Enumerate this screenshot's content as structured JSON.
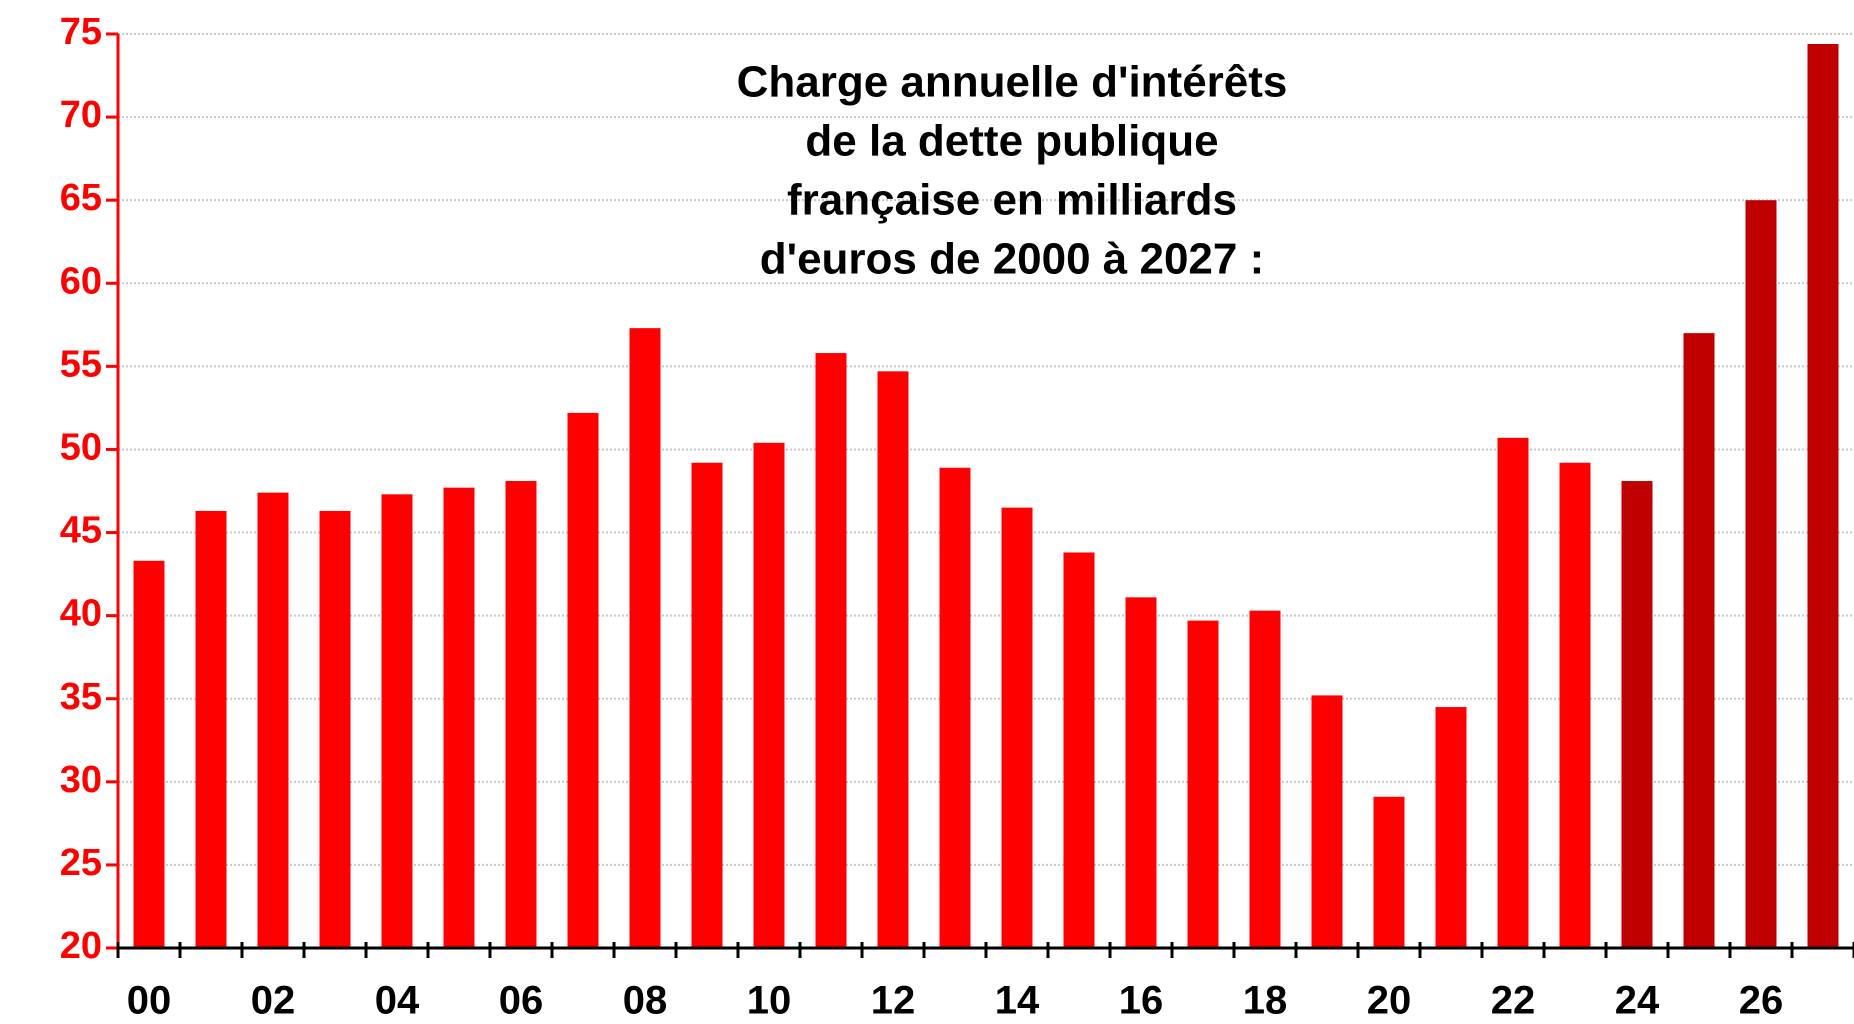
{
  "chart_data": {
    "type": "bar",
    "title": [
      "Charge annuelle d'intérêts",
      "de la dette publique",
      "française en milliards",
      "d'euros de 2000 à 2027 :"
    ],
    "categories": [
      "00",
      null,
      "02",
      null,
      "04",
      null,
      "06",
      null,
      "08",
      null,
      "10",
      null,
      "12",
      null,
      "14",
      null,
      "16",
      null,
      "18",
      null,
      "20",
      null,
      "22",
      null,
      "24",
      null,
      "26",
      null
    ],
    "values": [
      43.3,
      46.3,
      47.4,
      46.3,
      47.3,
      47.7,
      48.1,
      52.2,
      57.3,
      49.2,
      50.4,
      55.8,
      54.7,
      48.9,
      46.5,
      43.8,
      41.1,
      39.7,
      40.3,
      35.2,
      29.1,
      34.5,
      50.7,
      49.2,
      48.1,
      57.0,
      65.0,
      74.4
    ],
    "colors": [
      "#ff0000",
      "#ff0000",
      "#ff0000",
      "#ff0000",
      "#ff0000",
      "#ff0000",
      "#ff0000",
      "#ff0000",
      "#ff0000",
      "#ff0000",
      "#ff0000",
      "#ff0000",
      "#ff0000",
      "#ff0000",
      "#ff0000",
      "#ff0000",
      "#ff0000",
      "#ff0000",
      "#ff0000",
      "#ff0000",
      "#ff0000",
      "#ff0000",
      "#ff0000",
      "#ff0000",
      "#c00000",
      "#c00000",
      "#c00000",
      "#c00000"
    ],
    "ylim": [
      20,
      75
    ],
    "yticks": [
      20,
      25,
      30,
      35,
      40,
      45,
      50,
      55,
      60,
      65,
      70,
      75
    ],
    "grid": true
  }
}
